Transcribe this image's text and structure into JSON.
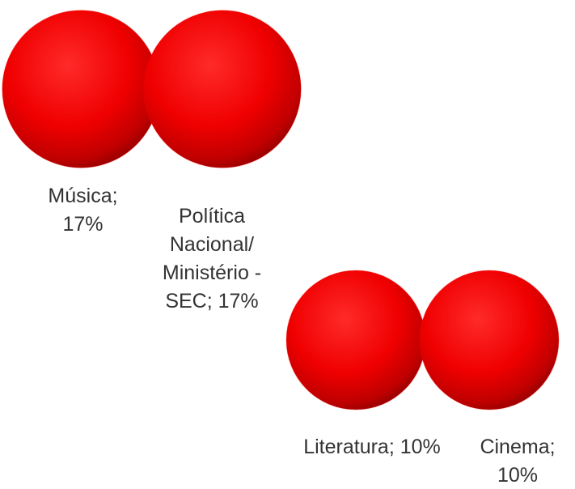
{
  "chart_data": {
    "type": "bubble",
    "values": [
      17,
      17,
      10,
      10
    ],
    "value_labels": [
      "Música; 17%",
      "Política Nacional/ Ministério -SEC; 17%",
      "Literatura; 10%",
      "Cinema; 10%"
    ],
    "color": "#ff0000"
  }
}
